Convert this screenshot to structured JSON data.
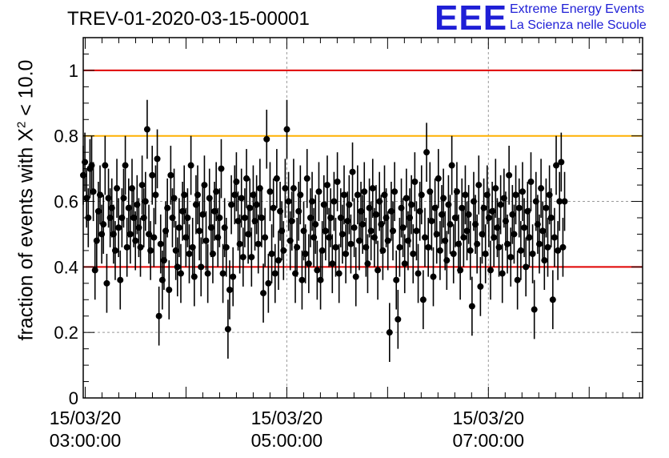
{
  "title": "TREV-01-2020-03-15-00001",
  "logo": {
    "mark": "EEE",
    "line1": "Extreme Energy Events",
    "line2": "La Scienza nelle Scuole"
  },
  "ylabel_prefix": "fraction of events with ",
  "ylabel_chi": "X",
  "ylabel_exp": "2",
  "ylabel_suffix": " < 10.0",
  "chart_data": {
    "type": "scatter",
    "title": "TREV-01-2020-03-15-00001",
    "xlabel": "",
    "ylabel": "fraction of events with X² < 10.0",
    "x_range_hours": [
      2.98,
      8.53
    ],
    "ylim": [
      0,
      1.1
    ],
    "y_ticks": [
      0,
      0.2,
      0.4,
      0.6,
      0.8,
      1
    ],
    "y_tick_labels": [
      "0",
      "0.2",
      "0.4",
      "0.6",
      "0.8",
      "1"
    ],
    "x_ticks": [
      {
        "time": "03:00:00",
        "date": "15/03/20",
        "hour": 3
      },
      {
        "time": "05:00:00",
        "date": "15/03/20",
        "hour": 5
      },
      {
        "time": "07:00:00",
        "date": "15/03/20",
        "hour": 7
      }
    ],
    "reference_lines": [
      {
        "y": 1.0,
        "color": "#e00000"
      },
      {
        "y": 0.8,
        "color": "#ffb000"
      },
      {
        "y": 0.4,
        "color": "#e00000"
      }
    ],
    "grid": true,
    "marker_color": "#000000",
    "error_bar": 0.09,
    "series": [
      {
        "x_start_hour": 2.98,
        "x_step_hour": 0.0167,
        "values": [
          0.68,
          0.72,
          0.61,
          0.55,
          0.7,
          0.71,
          0.63,
          0.39,
          0.48,
          0.57,
          0.62,
          0.5,
          0.53,
          0.71,
          0.35,
          0.61,
          0.55,
          0.58,
          0.5,
          0.45,
          0.64,
          0.52,
          0.36,
          0.55,
          0.61,
          0.71,
          0.46,
          0.58,
          0.5,
          0.64,
          0.55,
          0.48,
          0.59,
          0.52,
          0.46,
          0.65,
          0.55,
          0.6,
          0.82,
          0.5,
          0.45,
          0.68,
          0.49,
          0.62,
          0.73,
          0.25,
          0.47,
          0.36,
          0.42,
          0.51,
          0.58,
          0.33,
          0.68,
          0.55,
          0.61,
          0.45,
          0.4,
          0.52,
          0.38,
          0.57,
          0.62,
          0.49,
          0.55,
          0.44,
          0.71,
          0.46,
          0.37,
          0.59,
          0.62,
          0.51,
          0.4,
          0.56,
          0.65,
          0.48,
          0.38,
          0.61,
          0.52,
          0.44,
          0.57,
          0.63,
          0.49,
          0.55,
          0.7,
          0.38,
          0.52,
          0.46,
          0.21,
          0.33,
          0.59,
          0.37,
          0.62,
          0.66,
          0.54,
          0.47,
          0.61,
          0.43,
          0.55,
          0.67,
          0.5,
          0.58,
          0.43,
          0.62,
          0.54,
          0.59,
          0.47,
          0.64,
          0.55,
          0.32,
          0.49,
          0.79,
          0.35,
          0.63,
          0.44,
          0.58,
          0.38,
          0.67,
          0.42,
          0.57,
          0.51,
          0.45,
          0.64,
          0.82,
          0.6,
          0.48,
          0.54,
          0.64,
          0.38,
          0.46,
          0.57,
          0.62,
          0.36,
          0.51,
          0.44,
          0.67,
          0.41,
          0.55,
          0.6,
          0.49,
          0.53,
          0.39,
          0.63,
          0.36,
          0.45,
          0.59,
          0.51,
          0.65,
          0.49,
          0.55,
          0.41,
          0.6,
          0.46,
          0.66,
          0.38,
          0.55,
          0.5,
          0.62,
          0.44,
          0.54,
          0.59,
          0.47,
          0.69,
          0.52,
          0.37,
          0.62,
          0.48,
          0.57,
          0.53,
          0.63,
          0.46,
          0.41,
          0.58,
          0.51,
          0.64,
          0.49,
          0.56,
          0.39,
          0.6,
          0.53,
          0.45,
          0.62,
          0.55,
          0.48,
          0.2,
          0.57,
          0.51,
          0.63,
          0.36,
          0.24,
          0.46,
          0.58,
          0.52,
          0.41,
          0.61,
          0.48,
          0.55,
          0.59,
          0.44,
          0.66,
          0.51,
          0.38,
          0.57,
          0.62,
          0.3,
          0.49,
          0.75,
          0.46,
          0.63,
          0.54,
          0.37,
          0.58,
          0.5,
          0.67,
          0.45,
          0.56,
          0.61,
          0.48,
          0.42,
          0.59,
          0.53,
          0.71,
          0.44,
          0.55,
          0.63,
          0.47,
          0.39,
          0.58,
          0.49,
          0.62,
          0.51,
          0.56,
          0.45,
          0.28,
          0.6,
          0.53,
          0.47,
          0.65,
          0.34,
          0.5,
          0.58,
          0.44,
          0.62,
          0.55,
          0.39,
          0.57,
          0.49,
          0.64,
          0.52,
          0.46,
          0.59,
          0.38,
          0.61,
          0.54,
          0.47,
          0.68,
          0.43,
          0.56,
          0.5,
          0.62,
          0.36,
          0.58,
          0.45,
          0.63,
          0.52,
          0.4,
          0.57,
          0.49,
          0.66,
          0.44,
          0.27,
          0.6,
          0.53,
          0.47,
          0.64,
          0.51,
          0.42,
          0.58,
          0.46,
          0.62,
          0.55,
          0.3,
          0.49,
          0.71,
          0.45,
          0.6,
          0.72,
          0.46,
          0.6
        ]
      }
    ]
  }
}
